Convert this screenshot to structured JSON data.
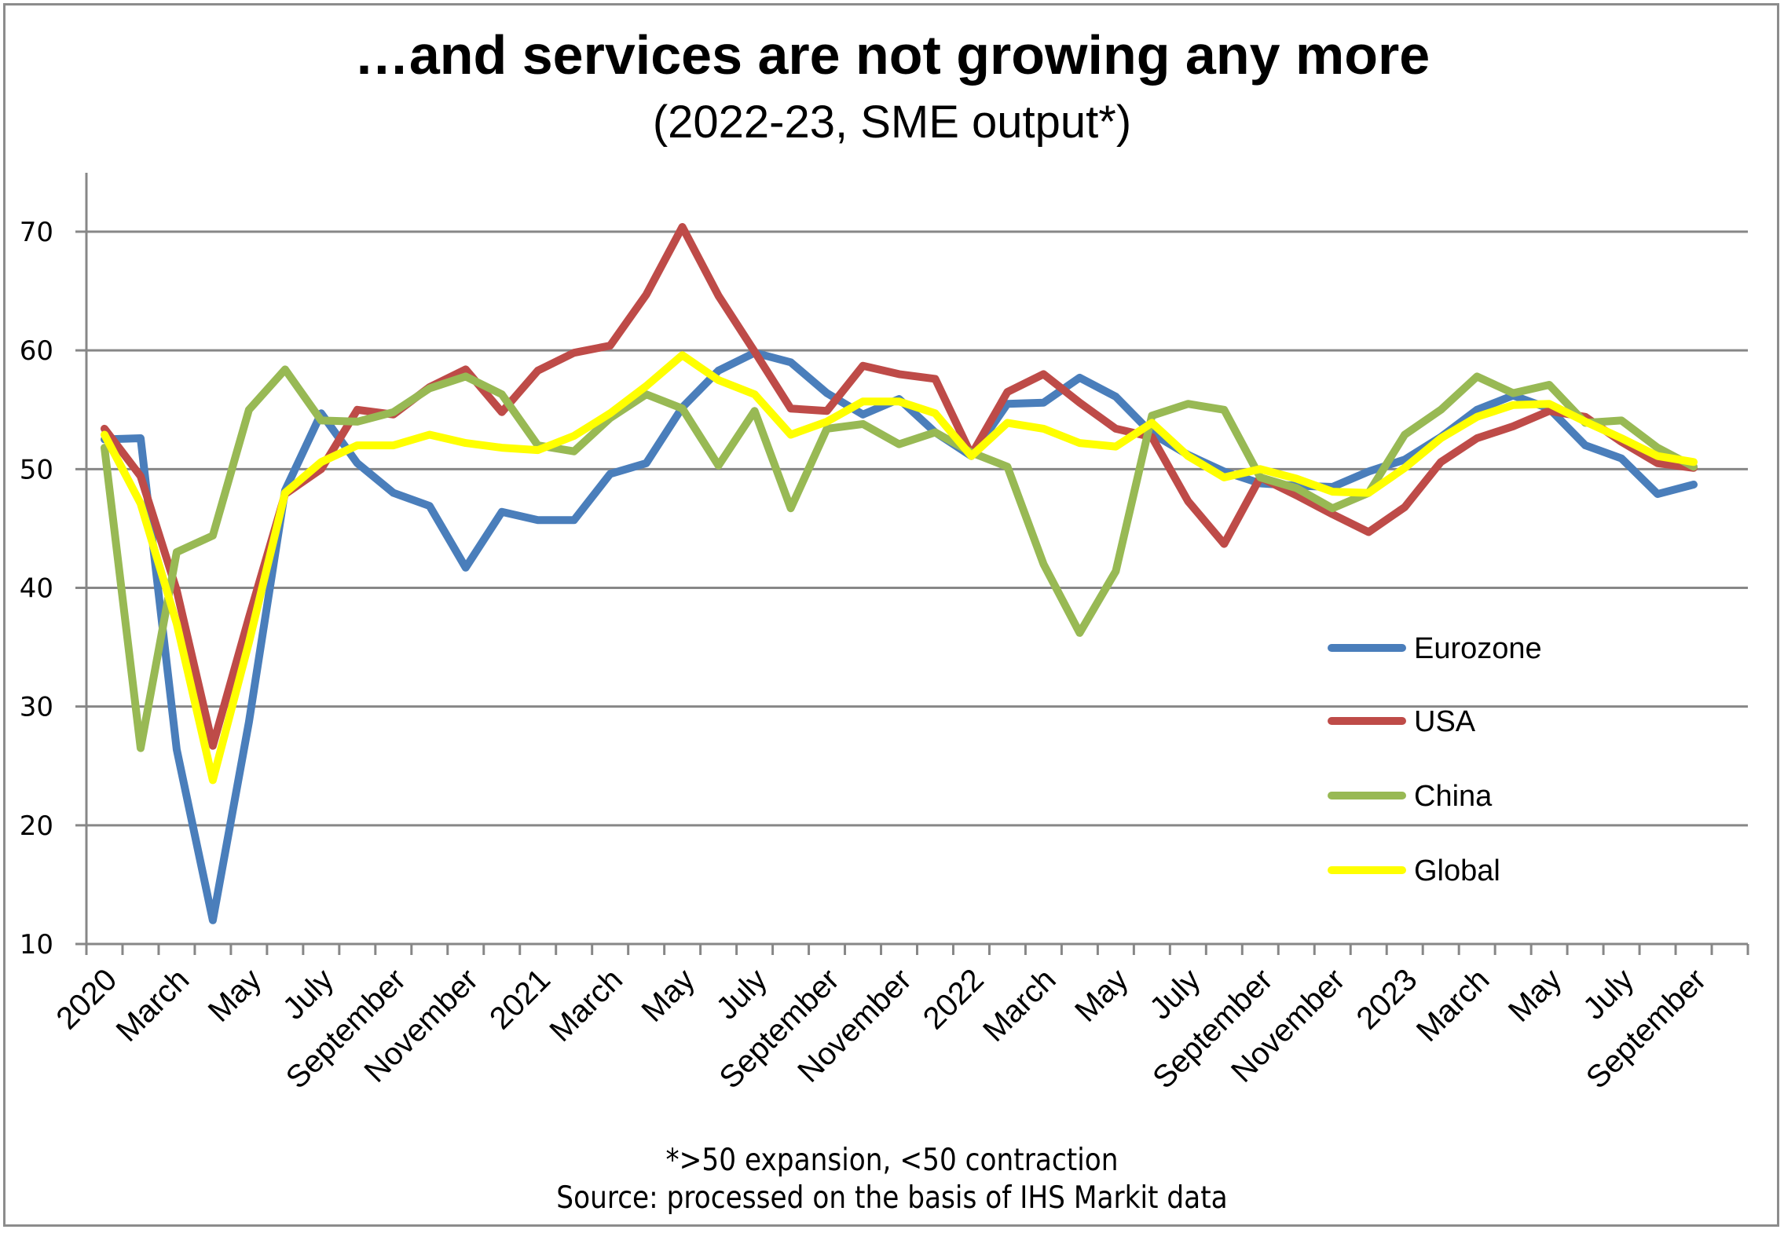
{
  "title": "…and services are not growing any more",
  "subtitle": "(2022-23, SME output*)",
  "footnote": "*>50 expansion, <50 contraction",
  "source": "Source: processed on the basis of IHS Markit data",
  "chart_data": {
    "type": "line",
    "title": "…and services are not growing any more",
    "subtitle": "(2022-23, SME output*)",
    "xlabel": "",
    "ylabel": "",
    "ylim": [
      10,
      75
    ],
    "yticks": [
      10,
      20,
      30,
      40,
      50,
      60,
      70
    ],
    "grid": true,
    "legend_position": "right",
    "x": [
      "Jan 2020",
      "Feb 2020",
      "Mar 2020",
      "Apr 2020",
      "May 2020",
      "Jun 2020",
      "Jul 2020",
      "Aug 2020",
      "Sep 2020",
      "Oct 2020",
      "Nov 2020",
      "Dec 2020",
      "Jan 2021",
      "Feb 2021",
      "Mar 2021",
      "Apr 2021",
      "May 2021",
      "Jun 2021",
      "Jul 2021",
      "Aug 2021",
      "Sep 2021",
      "Oct 2021",
      "Nov 2021",
      "Dec 2021",
      "Jan 2022",
      "Feb 2022",
      "Mar 2022",
      "Apr 2022",
      "May 2022",
      "Jun 2022",
      "Jul 2022",
      "Aug 2022",
      "Sep 2022",
      "Oct 2022",
      "Nov 2022",
      "Dec 2022",
      "Jan 2023",
      "Feb 2023",
      "Mar 2023",
      "Apr 2023",
      "May 2023",
      "Jun 2023",
      "Jul 2023",
      "Aug 2023",
      "Sep 2023"
    ],
    "x_tick_labels": [
      "2020",
      "",
      "March",
      "",
      "May",
      "",
      "July",
      "",
      "September",
      "",
      "November",
      "",
      "2021",
      "",
      "March",
      "",
      "May",
      "",
      "July",
      "",
      "September",
      "",
      "November",
      "",
      "2022",
      "",
      "March",
      "",
      "May",
      "",
      "July",
      "",
      "September",
      "",
      "November",
      "",
      "2023",
      "",
      "March",
      "",
      "May",
      "",
      "July",
      "",
      "September"
    ],
    "series": [
      {
        "name": "Eurozone",
        "color": "#4a7ebb",
        "values": [
          52.5,
          52.6,
          26.4,
          12.0,
          28.7,
          48.2,
          54.7,
          50.5,
          48.0,
          46.9,
          41.7,
          46.4,
          45.7,
          45.7,
          49.6,
          50.5,
          55.2,
          58.3,
          59.8,
          59.0,
          56.4,
          54.6,
          55.9,
          53.1,
          51.1,
          55.5,
          55.6,
          57.7,
          56.1,
          53.0,
          51.2,
          49.8,
          48.8,
          48.6,
          48.5,
          49.8,
          50.8,
          52.7,
          55.0,
          56.2,
          55.1,
          52.0,
          50.9,
          47.9,
          48.7
        ]
      },
      {
        "name": "USA",
        "color": "#be4b48",
        "values": [
          53.4,
          49.4,
          39.8,
          26.7,
          37.5,
          47.9,
          50.0,
          55.0,
          54.6,
          56.9,
          58.4,
          54.8,
          58.3,
          59.8,
          60.4,
          64.7,
          70.4,
          64.6,
          59.9,
          55.1,
          54.9,
          58.7,
          58.0,
          57.6,
          51.2,
          56.5,
          58.0,
          55.6,
          53.4,
          52.7,
          47.3,
          43.7,
          49.3,
          47.8,
          46.2,
          44.7,
          46.8,
          50.6,
          52.6,
          53.6,
          54.9,
          54.4,
          52.3,
          50.5,
          50.1
        ]
      },
      {
        "name": "China",
        "color": "#98b954",
        "values": [
          51.8,
          26.5,
          43.0,
          44.4,
          55.0,
          58.4,
          54.1,
          54.0,
          54.8,
          56.8,
          57.8,
          56.3,
          52.0,
          51.5,
          54.3,
          56.3,
          55.1,
          50.3,
          54.9,
          46.7,
          53.4,
          53.8,
          52.1,
          53.1,
          51.4,
          50.2,
          42.0,
          36.2,
          41.4,
          54.5,
          55.5,
          55.0,
          49.3,
          48.4,
          46.7,
          48.0,
          52.9,
          55.0,
          57.8,
          56.4,
          57.1,
          53.9,
          54.1,
          51.8,
          50.2
        ]
      },
      {
        "name": "Global",
        "color": "#ffff00",
        "values": [
          52.9,
          47.1,
          37.0,
          23.8,
          35.4,
          48.0,
          50.6,
          52.0,
          52.0,
          52.9,
          52.2,
          51.8,
          51.6,
          52.8,
          54.7,
          57.0,
          59.6,
          57.5,
          56.3,
          52.9,
          54.0,
          55.7,
          55.7,
          54.7,
          51.1,
          53.9,
          53.4,
          52.2,
          51.9,
          53.9,
          51.1,
          49.3,
          50.0,
          49.2,
          48.1,
          48.0,
          50.1,
          52.6,
          54.4,
          55.4,
          55.5,
          54.0,
          52.6,
          51.1,
          50.6
        ]
      }
    ]
  }
}
